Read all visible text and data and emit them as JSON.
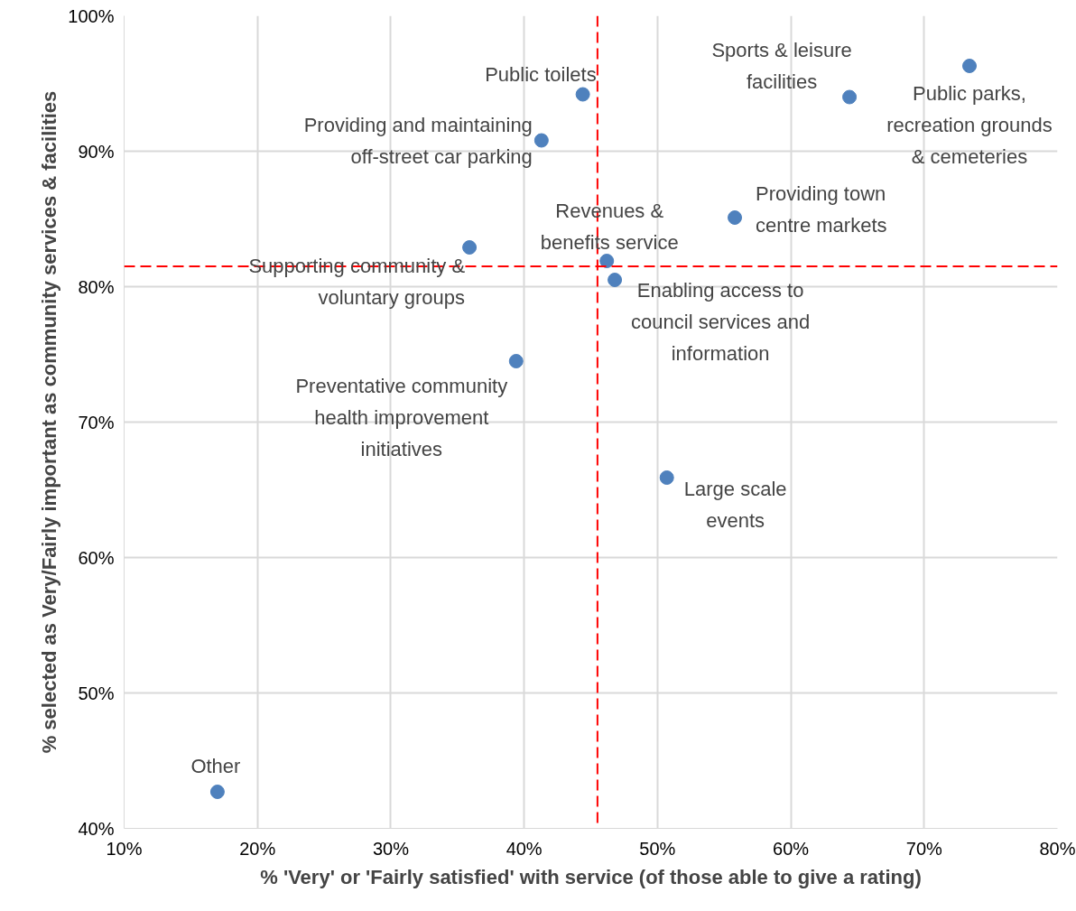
{
  "chart_data": {
    "type": "scatter",
    "xlabel": "% 'Very' or 'Fairly satisfied' with service (of those able to give a rating)",
    "ylabel": "% selected as Very/Fairly important as community services & facilities",
    "series": [
      {
        "color": "#4f81bd",
        "x": [
          44.4,
          41.3,
          64.4,
          73.4,
          55.8,
          46.2,
          46.8,
          35.9,
          39.4,
          50.7,
          17.0
        ],
        "values": [
          94.2,
          90.8,
          94.0,
          96.3,
          85.1,
          81.9,
          80.5,
          82.9,
          74.5,
          65.9,
          42.7
        ]
      }
    ],
    "marker": "circle",
    "annotations": [
      {
        "text": "Public toilets",
        "x": 44.4,
        "y": 94.2
      },
      {
        "text": "Providing and maintaining\noff-street car parking",
        "x": 41.3,
        "y": 90.8
      },
      {
        "text": "Sports & leisure\nfacilities",
        "x": 64.4,
        "y": 94.0
      },
      {
        "text": "Public parks,\nrecreation grounds\n& cemeteries",
        "x": 73.4,
        "y": 96.3
      },
      {
        "text": "Providing town\ncentre markets",
        "x": 55.8,
        "y": 85.1
      },
      {
        "text": "Revenues &\nbenefits service",
        "x": 46.2,
        "y": 81.9
      },
      {
        "text": "Enabling access to\ncouncil services and\ninformation",
        "x": 46.8,
        "y": 80.5
      },
      {
        "text": "Supporting community &\nvoluntary groups",
        "x": 35.9,
        "y": 82.9
      },
      {
        "text": "Preventative community\nhealth improvement\ninitiatives",
        "x": 39.4,
        "y": 74.5
      },
      {
        "text": "Large scale\nevents",
        "x": 50.7,
        "y": 65.9
      },
      {
        "text": "Other",
        "x": 17.0,
        "y": 42.7
      }
    ],
    "xlim": [
      10,
      80
    ],
    "xticks": [
      {
        "value": 10,
        "label": "10%"
      },
      {
        "value": 20,
        "label": "20%"
      },
      {
        "value": 30,
        "label": "30%"
      },
      {
        "value": 40,
        "label": "40%"
      },
      {
        "value": 50,
        "label": "50%"
      },
      {
        "value": 60,
        "label": "60%"
      },
      {
        "value": 70,
        "label": "70%"
      },
      {
        "value": 80,
        "label": "80%"
      }
    ],
    "ylim": [
      40,
      100
    ],
    "yticks": [
      {
        "value": 40,
        "label": "40%"
      },
      {
        "value": 50,
        "label": "50%"
      },
      {
        "value": 60,
        "label": "60%"
      },
      {
        "value": 70,
        "label": "70%"
      },
      {
        "value": 80,
        "label": "80%"
      },
      {
        "value": 90,
        "label": "90%"
      },
      {
        "value": 100,
        "label": "100%"
      }
    ],
    "grid": true,
    "ref_lines": [
      {
        "axis": "x",
        "value": 45.5,
        "color": "#ff0000",
        "line_style": "dashed"
      },
      {
        "axis": "y",
        "value": 81.5,
        "color": "#ff0000",
        "line_style": "dashed"
      }
    ]
  }
}
